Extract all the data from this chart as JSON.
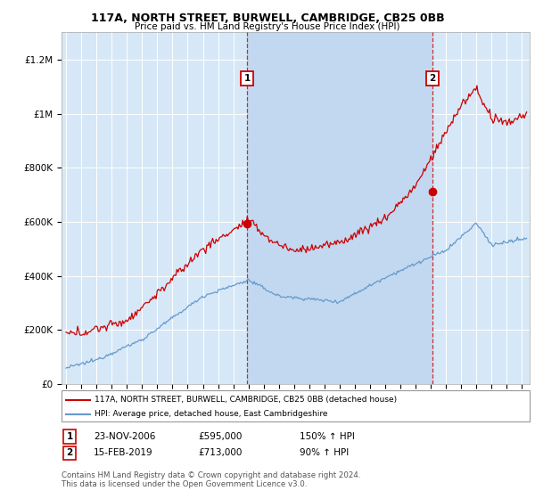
{
  "title": "117A, NORTH STREET, BURWELL, CAMBRIDGE, CB25 0BB",
  "subtitle": "Price paid vs. HM Land Registry's House Price Index (HPI)",
  "background_color": "#d6e8f7",
  "shade_color": "#c2d8f0",
  "red_color": "#cc0000",
  "blue_color": "#6699cc",
  "sale1_date_num": 2006.9,
  "sale1_price": 595000,
  "sale1_label": "1",
  "sale2_date_num": 2019.12,
  "sale2_price": 713000,
  "sale2_label": "2",
  "ylim": [
    0,
    1300000
  ],
  "xlim_start": 1994.7,
  "xlim_end": 2025.5,
  "footer": "Contains HM Land Registry data © Crown copyright and database right 2024.\nThis data is licensed under the Open Government Licence v3.0.",
  "legend_label_red": "117A, NORTH STREET, BURWELL, CAMBRIDGE, CB25 0BB (detached house)",
  "legend_label_blue": "HPI: Average price, detached house, East Cambridgeshire",
  "ann1_num": "1",
  "ann1_date": "23-NOV-2006",
  "ann1_price": "£595,000",
  "ann1_hpi": "150% ↑ HPI",
  "ann2_num": "2",
  "ann2_date": "15-FEB-2019",
  "ann2_price": "£713,000",
  "ann2_hpi": "90% ↑ HPI"
}
